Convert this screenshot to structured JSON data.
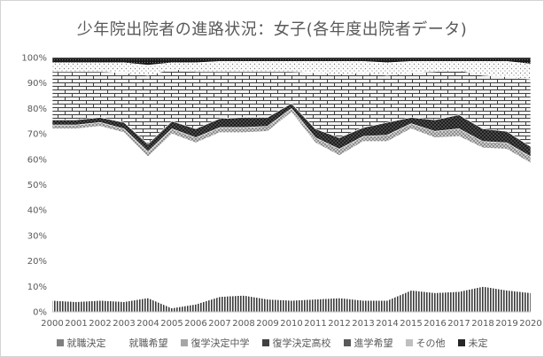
{
  "chart_data": {
    "type": "area",
    "stacked": true,
    "percent": true,
    "title": "少年院出院者の進路状況：女子(各年度出院者データ)",
    "xlabel": "",
    "ylabel": "",
    "ylim": [
      0,
      100
    ],
    "y_ticks": [
      "0%",
      "10%",
      "20%",
      "30%",
      "40%",
      "50%",
      "60%",
      "70%",
      "80%",
      "90%",
      "100%"
    ],
    "categories": [
      "2000",
      "2001",
      "2002",
      "2003",
      "2004",
      "2005",
      "2006",
      "2007",
      "2008",
      "2009",
      "2010",
      "2011",
      "2012",
      "2013",
      "2014",
      "2015",
      "2016",
      "2017",
      "2018",
      "2019",
      "2020"
    ],
    "legend_position": "bottom",
    "grid": true,
    "series": [
      {
        "name": "就職決定",
        "color": "#7f7f7f",
        "pattern": "vlines",
        "values": [
          4.5,
          4.0,
          4.5,
          4.0,
          5.5,
          1.5,
          3.0,
          6.0,
          6.5,
          5.0,
          4.5,
          5.0,
          5.5,
          4.5,
          4.5,
          8.5,
          7.5,
          8.0,
          10.0,
          8.5,
          7.5
        ]
      },
      {
        "name": "就職希望",
        "color": "#ffffff",
        "pattern": "none",
        "values": [
          67.5,
          68.0,
          68.5,
          66.5,
          55.5,
          68.5,
          63.5,
          64.5,
          64.0,
          66.0,
          74.0,
          61.5,
          56.0,
          62.5,
          62.5,
          63.5,
          61.0,
          61.0,
          54.5,
          55.5,
          51.0
        ]
      },
      {
        "name": "復学決定中学",
        "color": "#a6a6a6",
        "pattern": "crosshatch",
        "values": [
          1.5,
          1.5,
          1.5,
          1.5,
          2.0,
          2.0,
          2.0,
          2.0,
          2.0,
          2.0,
          1.5,
          2.0,
          2.5,
          2.0,
          2.5,
          2.0,
          2.5,
          3.0,
          2.5,
          2.5,
          2.5
        ]
      },
      {
        "name": "復学決定高校",
        "color": "#404040",
        "pattern": "diamond",
        "values": [
          2.0,
          2.0,
          2.0,
          2.5,
          3.0,
          3.0,
          3.5,
          3.5,
          4.0,
          3.5,
          2.0,
          3.5,
          4.5,
          3.5,
          5.0,
          2.5,
          4.5,
          5.5,
          5.0,
          4.5,
          4.0
        ]
      },
      {
        "name": "進学希望",
        "color": "#595959",
        "pattern": "brick",
        "values": [
          19.0,
          19.0,
          18.0,
          19.5,
          27.0,
          20.5,
          22.5,
          18.5,
          18.0,
          18.0,
          12.5,
          22.0,
          25.0,
          21.5,
          18.5,
          17.5,
          19.0,
          17.5,
          21.0,
          21.5,
          26.5
        ]
      },
      {
        "name": "その他",
        "color": "#bfbfbf",
        "pattern": "dots",
        "values": [
          3.5,
          3.5,
          3.5,
          4.0,
          4.0,
          2.5,
          3.5,
          4.0,
          4.0,
          4.0,
          4.0,
          4.5,
          5.0,
          4.5,
          5.0,
          4.5,
          4.0,
          3.5,
          5.5,
          6.0,
          6.0
        ]
      },
      {
        "name": "未定",
        "color": "#262626",
        "pattern": "dense",
        "values": [
          2.0,
          2.0,
          2.0,
          2.0,
          3.0,
          2.0,
          2.0,
          1.5,
          1.5,
          1.5,
          1.5,
          1.5,
          1.5,
          1.5,
          2.0,
          1.5,
          1.5,
          1.5,
          1.5,
          1.5,
          2.5
        ]
      }
    ]
  }
}
